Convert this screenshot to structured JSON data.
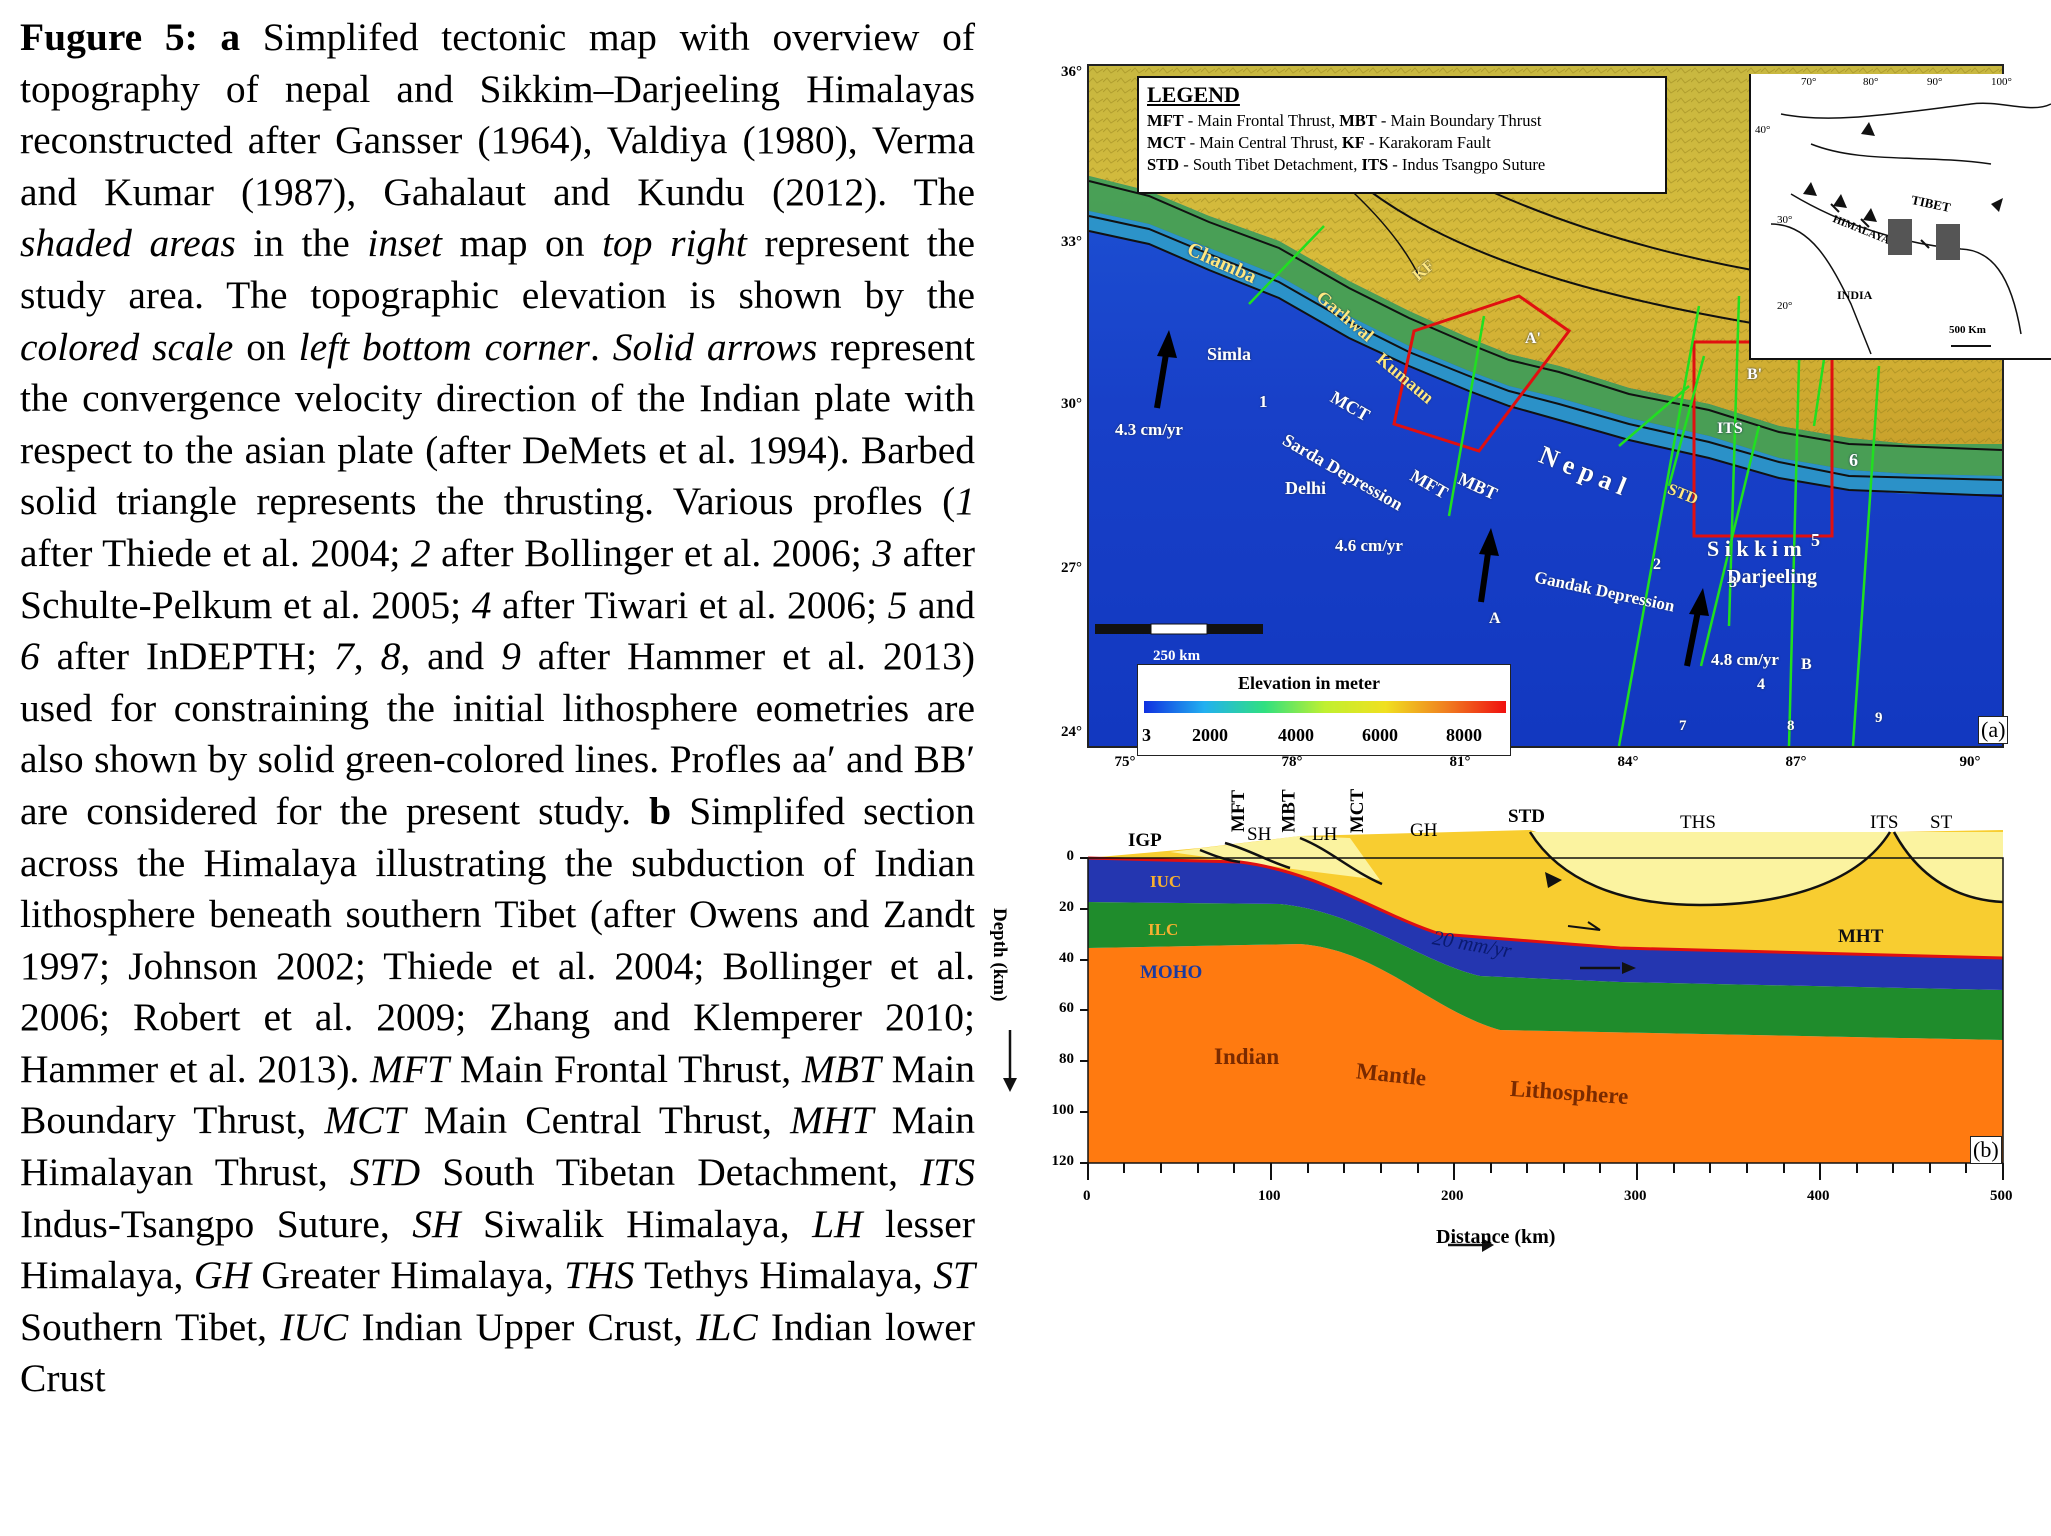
{
  "caption": {
    "s1": "Fugure 5: ",
    "s2": "a",
    "s3": " Simplifed tectonic map with overview of topography of nepal and Sikkim–Darjeeling Himalayas reconstructed after Gansser (1964), Valdiya (1980), Verma and Kumar (1987), Gahalaut and Kundu (2012). The ",
    "s4": "shaded areas",
    "s5": " in the ",
    "s6": "inset",
    "s7": " map on ",
    "s8": "top right",
    "s9": " represent the study area. The topographic elevation is shown by the ",
    "s10": "colored scale",
    "s11": " on ",
    "s12": "left bottom corner",
    "s13": ". ",
    "s14": "Solid arrows",
    "s15": " represent the convergence velocity direction of the Indian plate with respect to the asian plate (after DeMets et al. 1994). Barbed solid triangle represents the thrusting. Various profles (",
    "s16": "1",
    "s17": " after Thiede et al. 2004; ",
    "s18": "2",
    "s19": " after Bollinger et al. 2006; ",
    "s20": "3",
    "s21": " after Schulte-Pelkum et al. 2005; ",
    "s22": "4",
    "s23": " after Tiwari et al. 2006; ",
    "s24": "5",
    "s25": " and ",
    "s26": "6",
    "s27": " after InDEPTH; ",
    "s28": "7",
    "s29": ", ",
    "s30": "8",
    "s31": ", and ",
    "s32": "9",
    "s33": " after Hammer et al. 2013) used for constraining the initial lithosphere  eometries are also shown by solid green-colored lines. Profles aa′ and BB′ are considered for the present study. ",
    "s34": "b",
    "s35": " Simplifed section across the Himalaya illustrating the subduction of Indian lithosphere beneath southern Tibet (after Owens and Zandt 1997; Johnson 2002; Thiede et al. 2004; Bollinger et al. 2006; Robert et al. 2009; Zhang and Klemperer 2010; Hammer et al. 2013). ",
    "s36": "MFT",
    "s37": " Main Frontal Thrust, ",
    "s38": "MBT",
    "s39": " Main Boundary Thrust, ",
    "s40": "MCT",
    "s41": " Main Central Thrust, ",
    "s42": "MHT",
    "s43": " Main Himalayan Thrust, ",
    "s44": "STD",
    "s45": " South Tibetan Detachment, ",
    "s46": "ITS",
    "s47": " Indus-Tsangpo Suture, ",
    "s48": "SH",
    "s49": " Siwalik Himalaya, ",
    "s50": "LH",
    "s51": " lesser Himalaya, ",
    "s52": "GH",
    "s53": " Greater Himalaya, ",
    "s54": "THS",
    "s55": " Tethys Himalaya, ",
    "s56": "ST",
    "s57": " Southern Tibet, ",
    "s58": "IUC",
    "s59": " Indian Upper Crust, ",
    "s60": "ILC",
    "s61": " Indian lower Crust"
  },
  "map": {
    "lat_ticks": [
      "36°",
      "33°",
      "30°",
      "27°",
      "24°"
    ],
    "lon_ticks": [
      "75°",
      "78°",
      "81°",
      "84°",
      "87°",
      "90°"
    ],
    "legend": {
      "title": "LEGEND",
      "l1a": "MFT",
      "l1b": " - Main Frontal Thrust, ",
      "l1c": "MBT",
      "l1d": " - Main Boundary Thrust",
      "l2a": "MCT",
      "l2b": " - Main Central Thrust, ",
      "l2c": "KF",
      "l2d": " - Karakoram Fault",
      "l3a": "STD",
      "l3b": " - South Tibet Detachment, ",
      "l3c": "ITS",
      "l3d": " - Indus Tsangpo Suture"
    },
    "inset": {
      "lon1": "70°",
      "lon2": "80°",
      "lon3": "90°",
      "lon4": "100°",
      "lat1": "40°",
      "lat2": "30°",
      "lat3": "20°",
      "tibet": "TIBET",
      "himalaya": "HIMALAYA",
      "india": "INDIA",
      "scale": "500 Km"
    },
    "places": {
      "chamba": "Chamba",
      "kf": "KF",
      "garhwal": "Garhwal",
      "simla": "Simla",
      "kumaun": "Kumaun",
      "mct": "MCT",
      "p1": "1",
      "sarda": "Sarda Depression",
      "delhi": "Delhi",
      "mft": "MFT",
      "mbt": "MBT",
      "nepal": "N e p a l",
      "std": "STD",
      "a_prime": "A'",
      "b_prime": "B'",
      "its": "ITS",
      "p6": "6",
      "sikkim": "S i k k i m",
      "p5": "5",
      "darjeeling": "Darjeeling",
      "gandak": "Gandak Depression",
      "p2": "2",
      "p3": "3",
      "a": "A",
      "b": "B",
      "p4": "4",
      "p7": "7",
      "p8": "8",
      "p9": "9",
      "v1": "4.3 cm/yr",
      "v2": "4.6 cm/yr",
      "v3": "4.8 cm/yr"
    },
    "scale_label": "250 km",
    "elevation": {
      "title": "Elevation in meter",
      "ticks": [
        "3",
        "2000",
        "4000",
        "6000",
        "8000"
      ]
    },
    "panel_label": "(a)"
  },
  "section": {
    "top_labels": {
      "igp": "IGP",
      "mft": "MFT",
      "sh": "SH",
      "mbt": "MBT",
      "lh": "LH",
      "mct": "MCT",
      "gh": "GH",
      "std": "STD",
      "ths": "THS",
      "its": "ITS",
      "st": "ST"
    },
    "layers": {
      "iuc": "IUC",
      "ilc": "ILC",
      "moho": "MOHO",
      "mht": "MHT",
      "rate": "20 mm/yr",
      "indian": "Indian",
      "mantle": "Mantle",
      "litho": "Lithosphere"
    },
    "depth_ticks": [
      "0",
      "20",
      "40",
      "60",
      "80",
      "100",
      "120"
    ],
    "dist_ticks": [
      "0",
      "100",
      "200",
      "300",
      "400",
      "500"
    ],
    "depth_axis": "Depth (km)",
    "dist_axis": "Distance (km)",
    "panel_label": "(b)",
    "colors": {
      "crust_top": "#f8cd30",
      "tibet_pale": "#fbf3a0",
      "iuc": "#2436b0",
      "ilc": "#1f8c2c",
      "mantle": "#ff7a10",
      "mht_line": "#e01010"
    }
  }
}
